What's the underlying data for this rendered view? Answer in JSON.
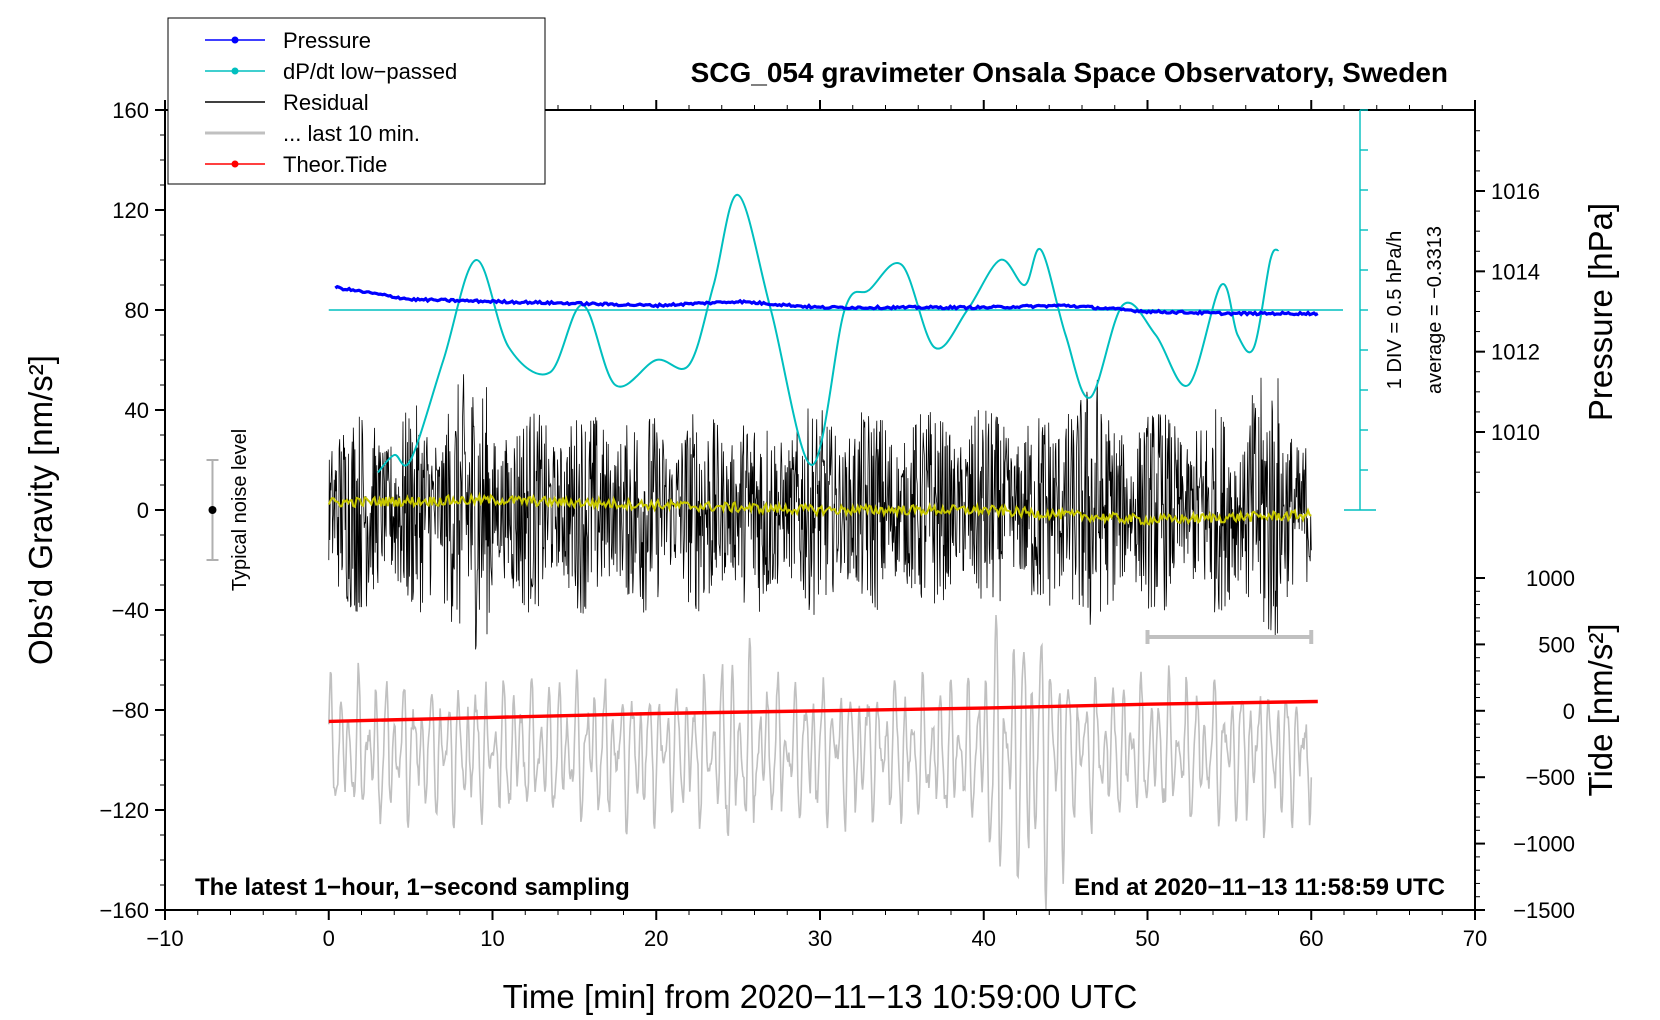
{
  "chart_data": {
    "type": "line",
    "title": "SCG_054 gravimeter Onsala Space Observatory, Sweden",
    "xlabel": "Time [min] from 2020−11−13 10:59:00 UTC",
    "ylabel_left": "Obs’d Gravity [nm/s²]",
    "ylabel_pressure": "Pressure [hPa]",
    "ylabel_tide": "Tide [nm/s²]",
    "xlim": [
      -10,
      70
    ],
    "ylim": [
      -160,
      160
    ],
    "pressure_lim": [
      1007.2,
      1017.8
    ],
    "tide_lim": [
      -1500,
      1000
    ],
    "x_ticks": [
      "−10",
      "0",
      "10",
      "20",
      "30",
      "40",
      "50",
      "60",
      "70"
    ],
    "y_ticks": [
      "160",
      "120",
      "80",
      "40",
      "0",
      "−40",
      "−80",
      "−120",
      "−160"
    ],
    "pressure_ticks": [
      "1016",
      "1014",
      "1012",
      "1010"
    ],
    "tide_ticks": [
      "1000",
      "500",
      "0",
      "−500",
      "−1000",
      "−1500"
    ],
    "note_left": "The latest 1−hour, 1−second sampling",
    "note_right": "End at 2020−11−13 11:58:59 UTC",
    "noise_label": "Typical noise level",
    "noise_range": [
      -20,
      20
    ],
    "dpdt_scale_label": "1 DIV = 0.5 hPa/h",
    "dpdt_average_label": "average = −0.3313",
    "last10_range": [
      50,
      60
    ],
    "legend": [
      {
        "label": "Pressure",
        "color": "#0000ff",
        "marker": true
      },
      {
        "label": "dP/dt low−passed",
        "color": "#00bfbf",
        "marker": true
      },
      {
        "label": "Residual",
        "color": "#000000",
        "marker": false
      },
      {
        "label": "... last 10 min.",
        "color": "#c0c0c0",
        "marker": false
      },
      {
        "label": "Theor.Tide",
        "color": "#ff0000",
        "marker": true
      }
    ],
    "series": {
      "pressure": {
        "name": "Pressure",
        "color": "#0000ff",
        "x": [
          0.4,
          5,
          10,
          15,
          20,
          25,
          30,
          35,
          40,
          45,
          50,
          55,
          60.4
        ],
        "values": [
          1013.6,
          1013.3,
          1013.25,
          1013.2,
          1013.15,
          1013.25,
          1013.1,
          1013.1,
          1013.1,
          1013.15,
          1013.0,
          1012.95,
          1012.95
        ]
      },
      "dpdt": {
        "name": "dP/dt low−passed",
        "color": "#00bfbf",
        "baseline": 80,
        "x": [
          3,
          4,
          5,
          7,
          9,
          11,
          13.5,
          15.5,
          17.5,
          20,
          22,
          23.5,
          25,
          27,
          29.5,
          31.5,
          33,
          35,
          37,
          39,
          41,
          42.5,
          43.5,
          45,
          46.5,
          48.5,
          50.5,
          52.5,
          54.5,
          55.5,
          56.5,
          57.5,
          58
        ],
        "values": [
          15,
          22,
          20,
          60,
          100,
          65,
          55,
          82,
          50,
          60,
          58,
          90,
          126,
          80,
          18,
          80,
          88,
          98,
          65,
          80,
          100,
          90,
          104,
          70,
          45,
          82,
          70,
          50,
          90,
          70,
          65,
          100,
          104
        ]
      },
      "residual": {
        "name": "Residual",
        "color": "#000000",
        "x_range": [
          0,
          60
        ],
        "amplitude_range": [
          -70,
          68
        ]
      },
      "residual_smooth": {
        "name": "Residual smoothed",
        "color": "#c8c800",
        "x": [
          0,
          10,
          20,
          30,
          40,
          50,
          60
        ],
        "values": [
          3,
          4,
          2,
          0,
          0,
          -4,
          -2
        ]
      },
      "last_10_min": {
        "name": "... last 10 min.",
        "color": "#c0c0c0",
        "x_range": [
          0,
          60
        ],
        "amplitude_range": [
          -1500,
          900
        ]
      },
      "theor_tide": {
        "name": "Theor.Tide",
        "color": "#ff0000",
        "x": [
          0,
          10,
          20,
          30,
          40,
          50,
          60.4
        ],
        "values": [
          -80,
          -50,
          -20,
          0,
          20,
          50,
          70
        ]
      }
    }
  }
}
